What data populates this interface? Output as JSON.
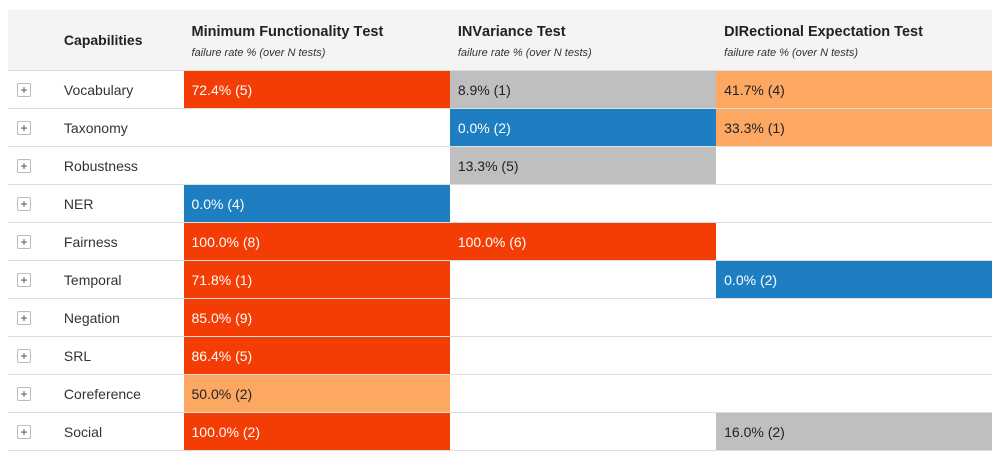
{
  "header": {
    "capabilities": "Capabilities",
    "tests": [
      {
        "bold": "M",
        "rest": "inimum Functionality ",
        "bold2": "T",
        "rest2": "est",
        "sub": "failure rate % (over N tests)"
      },
      {
        "bold": "INV",
        "rest": "ariance Test",
        "bold2": "",
        "rest2": "",
        "sub": "failure rate % (over N tests)"
      },
      {
        "bold": "DIR",
        "rest": "ectional Expectation Test",
        "bold2": "",
        "rest2": "",
        "sub": "failure rate % (over N tests)"
      }
    ]
  },
  "expand_symbol": "+",
  "colors": {
    "red": "#f43d05",
    "orange": "#fda862",
    "blue": "#1d7fc2",
    "gray": "#bfbfbf"
  },
  "rows": [
    {
      "name": "Vocabulary",
      "cells": [
        {
          "text": "72.4% (5)",
          "color": "red"
        },
        {
          "text": "8.9% (1)",
          "color": "gray"
        },
        {
          "text": "41.7% (4)",
          "color": "orange"
        }
      ]
    },
    {
      "name": "Taxonomy",
      "cells": [
        {
          "text": "",
          "color": ""
        },
        {
          "text": "0.0% (2)",
          "color": "blue"
        },
        {
          "text": "33.3% (1)",
          "color": "orange"
        }
      ]
    },
    {
      "name": "Robustness",
      "cells": [
        {
          "text": "",
          "color": ""
        },
        {
          "text": "13.3% (5)",
          "color": "gray"
        },
        {
          "text": "",
          "color": ""
        }
      ]
    },
    {
      "name": "NER",
      "cells": [
        {
          "text": "0.0% (4)",
          "color": "blue"
        },
        {
          "text": "",
          "color": ""
        },
        {
          "text": "",
          "color": ""
        }
      ]
    },
    {
      "name": "Fairness",
      "cells": [
        {
          "text": "100.0% (8)",
          "color": "red"
        },
        {
          "text": "100.0% (6)",
          "color": "red"
        },
        {
          "text": "",
          "color": ""
        }
      ]
    },
    {
      "name": "Temporal",
      "cells": [
        {
          "text": "71.8% (1)",
          "color": "red"
        },
        {
          "text": "",
          "color": ""
        },
        {
          "text": "0.0% (2)",
          "color": "blue"
        }
      ]
    },
    {
      "name": "Negation",
      "cells": [
        {
          "text": "85.0% (9)",
          "color": "red"
        },
        {
          "text": "",
          "color": ""
        },
        {
          "text": "",
          "color": ""
        }
      ]
    },
    {
      "name": "SRL",
      "cells": [
        {
          "text": "86.4% (5)",
          "color": "red"
        },
        {
          "text": "",
          "color": ""
        },
        {
          "text": "",
          "color": ""
        }
      ]
    },
    {
      "name": "Coreference",
      "cells": [
        {
          "text": "50.0% (2)",
          "color": "orange"
        },
        {
          "text": "",
          "color": ""
        },
        {
          "text": "",
          "color": ""
        }
      ]
    },
    {
      "name": "Social",
      "cells": [
        {
          "text": "100.0% (2)",
          "color": "red"
        },
        {
          "text": "",
          "color": ""
        },
        {
          "text": "16.0% (2)",
          "color": "gray"
        }
      ]
    }
  ]
}
